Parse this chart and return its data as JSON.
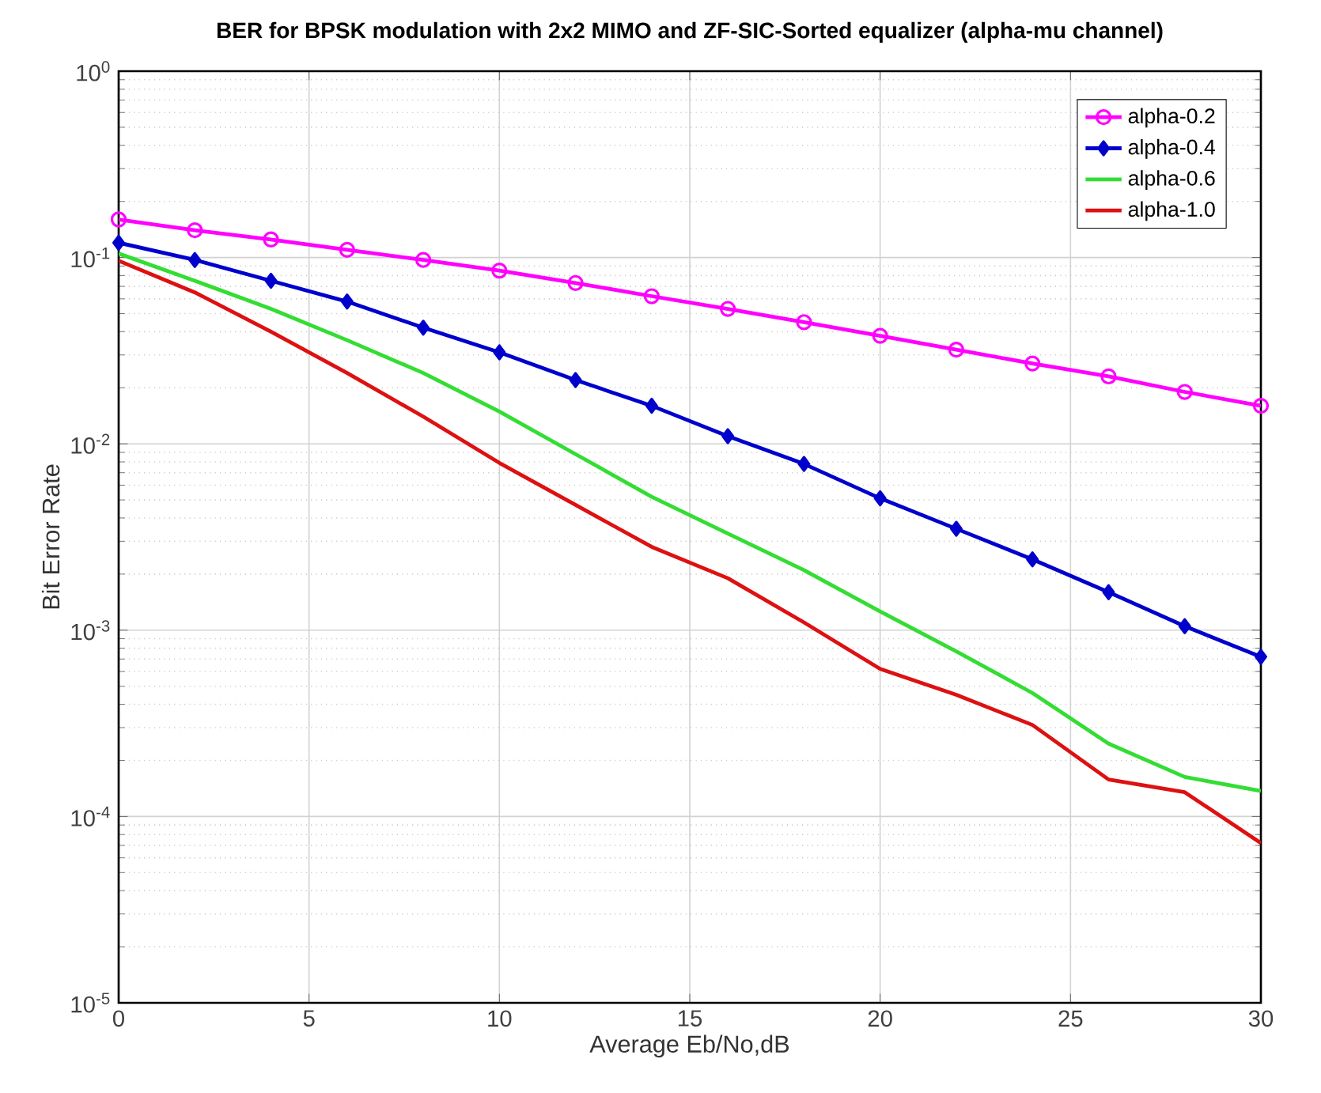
{
  "chart_data": {
    "type": "line",
    "title": "BER for BPSK modulation with 2x2 MIMO and ZF-SIC-Sorted equalizer (alpha-mu channel)",
    "xlabel": "Average Eb/No,dB",
    "ylabel": "Bit Error Rate",
    "x": [
      0,
      2,
      4,
      6,
      8,
      10,
      12,
      14,
      16,
      18,
      20,
      22,
      24,
      26,
      28,
      30
    ],
    "series": [
      {
        "name": "alpha-0.2",
        "color": "#ff00ff",
        "marker": "circle",
        "values": [
          0.16,
          0.14,
          0.125,
          0.11,
          0.097,
          0.085,
          0.073,
          0.062,
          0.053,
          0.045,
          0.038,
          0.032,
          0.027,
          0.023,
          0.019,
          0.016
        ]
      },
      {
        "name": "alpha-0.4",
        "color": "#0000cc",
        "marker": "diamond",
        "values": [
          0.12,
          0.097,
          0.075,
          0.058,
          0.042,
          0.031,
          0.022,
          0.016,
          0.011,
          0.0078,
          0.0051,
          0.0035,
          0.0024,
          0.0016,
          0.00105,
          0.00072
        ]
      },
      {
        "name": "alpha-0.6",
        "color": "#33dd33",
        "marker": "none",
        "values": [
          0.105,
          0.075,
          0.053,
          0.036,
          0.024,
          0.0149,
          0.0088,
          0.0052,
          0.0033,
          0.0021,
          0.00126,
          0.00077,
          0.00046,
          0.000246,
          0.000163,
          0.000137
        ]
      },
      {
        "name": "alpha-1.0",
        "color": "#dd1111",
        "marker": "none",
        "values": [
          0.096,
          0.065,
          0.04,
          0.024,
          0.014,
          0.0079,
          0.0047,
          0.0028,
          0.0019,
          0.0011,
          0.00062,
          0.00045,
          0.00031,
          0.000158,
          0.000135,
          7.2e-05
        ]
      }
    ],
    "xlim": [
      0,
      30
    ],
    "xticks": [
      0,
      5,
      10,
      15,
      20,
      25,
      30
    ],
    "ylim": [
      1e-05,
      1
    ],
    "yticks": [
      {
        "value": 1e-05,
        "label": "10$^{-5}$"
      },
      {
        "value": 0.0001,
        "label": "10$^{-4}$"
      },
      {
        "value": 0.001,
        "label": "10$^{-3}$"
      },
      {
        "value": 0.01,
        "label": "10$^{-2}$"
      },
      {
        "value": 0.1,
        "label": "10$^{-1}$"
      },
      {
        "value": 1,
        "label": "10$^{0}$"
      }
    ],
    "log": "y",
    "grid": true,
    "legend": "top right",
    "line_style": "solid"
  }
}
